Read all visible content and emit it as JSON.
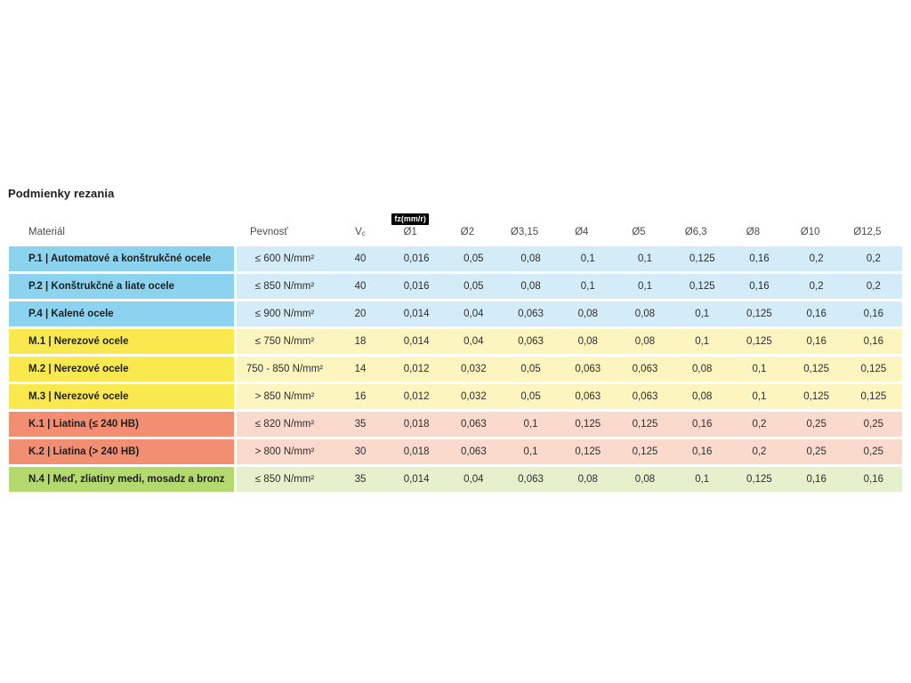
{
  "page": {
    "title": "Podmienky rezania"
  },
  "table": {
    "headers": {
      "material": "Materiál",
      "pevnost": "Pevnosť",
      "vc_main": "V",
      "vc_sub": "c",
      "fz_badge": "fz(mm/r)",
      "diameters": [
        "Ø1",
        "Ø2",
        "Ø3,15",
        "Ø4",
        "Ø5",
        "Ø6,3",
        "Ø8",
        "Ø10",
        "Ø12,5"
      ]
    },
    "rows": [
      {
        "group": "blue",
        "material": "P.1 | Automatové a konštrukčné ocele",
        "pevnost": "≤ 600 N/mm²",
        "vc": "40",
        "values": [
          "0,016",
          "0,05",
          "0,08",
          "0,1",
          "0,1",
          "0,125",
          "0,16",
          "0,2",
          "0,2"
        ]
      },
      {
        "group": "blue",
        "material": "P.2 | Konštrukčné a liate ocele",
        "pevnost": "≤ 850 N/mm²",
        "vc": "40",
        "values": [
          "0,016",
          "0,05",
          "0,08",
          "0,1",
          "0,1",
          "0,125",
          "0,16",
          "0,2",
          "0,2"
        ]
      },
      {
        "group": "blue",
        "material": "P.4 | Kalené ocele",
        "pevnost": "≤ 900 N/mm²",
        "vc": "20",
        "values": [
          "0,014",
          "0,04",
          "0,063",
          "0,08",
          "0,08",
          "0,1",
          "0,125",
          "0,16",
          "0,16"
        ]
      },
      {
        "group": "yellow",
        "material": "M.1 | Nerezové ocele",
        "pevnost": "≤ 750 N/mm²",
        "vc": "18",
        "values": [
          "0,014",
          "0,04",
          "0,063",
          "0,08",
          "0,08",
          "0,1",
          "0,125",
          "0,16",
          "0,16"
        ]
      },
      {
        "group": "yellow",
        "material": "M.2 | Nerezové ocele",
        "pevnost": "750 - 850 N/mm²",
        "vc": "14",
        "values": [
          "0,012",
          "0,032",
          "0,05",
          "0,063",
          "0,063",
          "0,08",
          "0,1",
          "0,125",
          "0,125"
        ]
      },
      {
        "group": "yellow",
        "material": "M.3 | Nerezové ocele",
        "pevnost": "> 850 N/mm²",
        "vc": "16",
        "values": [
          "0,012",
          "0,032",
          "0,05",
          "0,063",
          "0,063",
          "0,08",
          "0,1",
          "0,125",
          "0,125"
        ]
      },
      {
        "group": "orange",
        "material": "K.1 | Liatina (≤ 240 HB)",
        "pevnost": "≤ 820 N/mm²",
        "vc": "35",
        "values": [
          "0,018",
          "0,063",
          "0,1",
          "0,125",
          "0,125",
          "0,16",
          "0,2",
          "0,25",
          "0,25"
        ]
      },
      {
        "group": "orange",
        "material": "K.2 | Liatina (> 240 HB)",
        "pevnost": "> 800 N/mm²",
        "vc": "30",
        "values": [
          "0,018",
          "0,063",
          "0,1",
          "0,125",
          "0,125",
          "0,16",
          "0,2",
          "0,25",
          "0,25"
        ]
      },
      {
        "group": "green",
        "material": "N.4 | Meď, zliatiny medi, mosadz a bronz",
        "pevnost": "≤ 850 N/mm²",
        "vc": "35",
        "values": [
          "0,014",
          "0,04",
          "0,063",
          "0,08",
          "0,08",
          "0,1",
          "0,125",
          "0,16",
          "0,16"
        ]
      }
    ],
    "colors": {
      "blue_label": "#8BD3EF",
      "blue_cell": "#D3ECF8",
      "yellow_label": "#F9E94F",
      "yellow_cell": "#FCF5BF",
      "orange_label": "#F28E72",
      "orange_cell": "#FBDACE",
      "green_label": "#B4D96F",
      "green_cell": "#E6F0CC",
      "badge_bg": "#000000",
      "badge_text": "#FFFFFF"
    }
  }
}
